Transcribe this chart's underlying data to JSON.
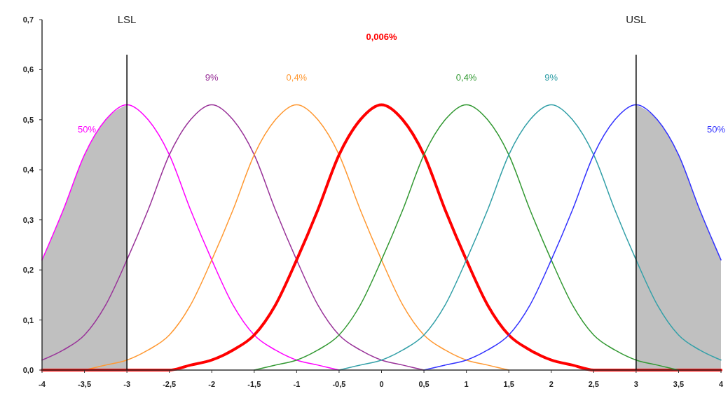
{
  "chart_data": {
    "type": "line",
    "ylim": [
      0,
      0.7
    ],
    "yticks": [
      {
        "value": 0,
        "label": "0,0"
      },
      {
        "value": 0.1,
        "label": "0,1"
      },
      {
        "value": 0.2,
        "label": "0,2"
      },
      {
        "value": 0.3,
        "label": "0,3"
      },
      {
        "value": 0.4,
        "label": "0,4"
      },
      {
        "value": 0.5,
        "label": "0,5"
      },
      {
        "value": 0.6,
        "label": "0,6"
      },
      {
        "value": 0.7,
        "label": "0,7"
      }
    ],
    "xlim": [
      -4,
      4
    ],
    "xticks": [
      -4,
      {
        "value": -3.5,
        "label": "-3,5"
      },
      -3,
      {
        "value": -2.5,
        "label": "-2,5"
      },
      -2,
      {
        "value": -1.5,
        "label": "-1,5"
      },
      -1,
      {
        "value": -0.5,
        "label": "-0,5"
      },
      0,
      {
        "value": 0.5,
        "label": "0,5"
      },
      1,
      {
        "value": 1.5,
        "label": "1,5"
      },
      2,
      {
        "value": 2.5,
        "label": "2,5"
      },
      3,
      {
        "value": 3.5,
        "label": "3,5"
      },
      4
    ],
    "grid": false,
    "ref_lines": [
      {
        "axis": "x",
        "value": -3,
        "label": "LSL",
        "color": "#000000"
      },
      {
        "axis": "x",
        "value": 3,
        "label": "USL",
        "color": "#000000"
      }
    ],
    "series": [
      {
        "type": "area",
        "color": "#c0c0c0",
        "x": [
          -4,
          -3.75,
          -3.5,
          -3.25,
          -3
        ],
        "values": [
          0.22,
          0.32,
          0.43,
          0.5,
          0.53
        ]
      },
      {
        "type": "area",
        "color": "#c0c0c0",
        "x": [
          3,
          3.25,
          3.5,
          3.75,
          4
        ],
        "values": [
          0.53,
          0.5,
          0.43,
          0.32,
          0.22
        ]
      },
      {
        "name": "50%",
        "color": "#ff00ff",
        "x": [
          -4,
          -3.75,
          -3.5,
          -3.25,
          -3,
          -2.75,
          -2.5,
          -2.25,
          -2,
          -1.75,
          -1.5,
          -1.25,
          -1,
          -0.75,
          -0.5
        ],
        "values": [
          0.22,
          0.32,
          0.43,
          0.5,
          0.53,
          0.5,
          0.43,
          0.32,
          0.22,
          0.13,
          0.07,
          0.04,
          0.02,
          0.01,
          0
        ]
      },
      {
        "name": "9%",
        "color": "#993399",
        "x": [
          -4,
          -3.75,
          -3.5,
          -3.25,
          -3,
          -2.75,
          -2.5,
          -2.25,
          -2,
          -1.75,
          -1.5,
          -1.25,
          -1,
          -0.75,
          -0.5,
          -0.25,
          0,
          0.25,
          0.5
        ],
        "values": [
          0.02,
          0.04,
          0.07,
          0.13,
          0.22,
          0.32,
          0.43,
          0.5,
          0.53,
          0.5,
          0.43,
          0.32,
          0.22,
          0.13,
          0.07,
          0.04,
          0.02,
          0.01,
          0
        ]
      },
      {
        "name": "0,4%",
        "color": "#ff9933",
        "x": [
          -3.5,
          -3.25,
          -3,
          -2.75,
          -2.5,
          -2.25,
          -2,
          -1.75,
          -1.5,
          -1.25,
          -1,
          -0.75,
          -0.5,
          -0.25,
          0,
          0.25,
          0.5,
          0.75,
          1,
          1.25,
          1.5
        ],
        "values": [
          0,
          0.01,
          0.02,
          0.04,
          0.07,
          0.13,
          0.22,
          0.32,
          0.43,
          0.5,
          0.53,
          0.5,
          0.43,
          0.32,
          0.22,
          0.13,
          0.07,
          0.04,
          0.02,
          0.01,
          0
        ]
      },
      {
        "name": "0,006%",
        "color": "#ff0000",
        "x": [
          -4,
          -3.75,
          -3.5,
          -3.25,
          -3,
          -2.75,
          -2.5,
          -2.25,
          -2,
          -1.75,
          -1.5,
          -1.25,
          -1,
          -0.75,
          -0.5,
          -0.25,
          0,
          0.25,
          0.5,
          0.75,
          1,
          1.25,
          1.5,
          1.75,
          2,
          2.25,
          2.5,
          2.75,
          3,
          3.25,
          3.5,
          3.75,
          4
        ],
        "values": [
          0,
          0,
          0,
          0,
          0,
          0,
          0,
          0.01,
          0.02,
          0.04,
          0.07,
          0.13,
          0.22,
          0.32,
          0.43,
          0.5,
          0.53,
          0.5,
          0.43,
          0.32,
          0.22,
          0.13,
          0.07,
          0.04,
          0.02,
          0.01,
          0,
          0,
          0,
          0,
          0,
          0,
          0
        ]
      },
      {
        "name": "0,4%",
        "color": "#339933",
        "x": [
          -1.5,
          -1.25,
          -1,
          -0.75,
          -0.5,
          -0.25,
          0,
          0.25,
          0.5,
          0.75,
          1,
          1.25,
          1.5,
          1.75,
          2,
          2.25,
          2.5,
          2.75,
          3,
          3.25,
          3.5
        ],
        "values": [
          0,
          0.01,
          0.02,
          0.04,
          0.07,
          0.13,
          0.22,
          0.32,
          0.43,
          0.5,
          0.53,
          0.5,
          0.43,
          0.32,
          0.22,
          0.13,
          0.07,
          0.04,
          0.02,
          0.01,
          0
        ]
      },
      {
        "name": "9%",
        "color": "#33a0a8",
        "x": [
          -0.5,
          -0.25,
          0,
          0.25,
          0.5,
          0.75,
          1,
          1.25,
          1.5,
          1.75,
          2,
          2.25,
          2.5,
          2.75,
          3,
          3.25,
          3.5,
          3.75,
          4
        ],
        "values": [
          0,
          0.01,
          0.02,
          0.04,
          0.07,
          0.13,
          0.22,
          0.32,
          0.43,
          0.5,
          0.53,
          0.5,
          0.43,
          0.32,
          0.22,
          0.13,
          0.07,
          0.04,
          0.02
        ]
      },
      {
        "name": "50%",
        "color": "#3333ff",
        "x": [
          0.5,
          0.75,
          1,
          1.25,
          1.5,
          1.75,
          2,
          2.25,
          2.5,
          2.75,
          3,
          3.25,
          3.5,
          3.75,
          4
        ],
        "values": [
          0,
          0.01,
          0.02,
          0.04,
          0.07,
          0.13,
          0.22,
          0.32,
          0.43,
          0.5,
          0.53,
          0.5,
          0.43,
          0.32,
          0.22
        ]
      }
    ]
  }
}
